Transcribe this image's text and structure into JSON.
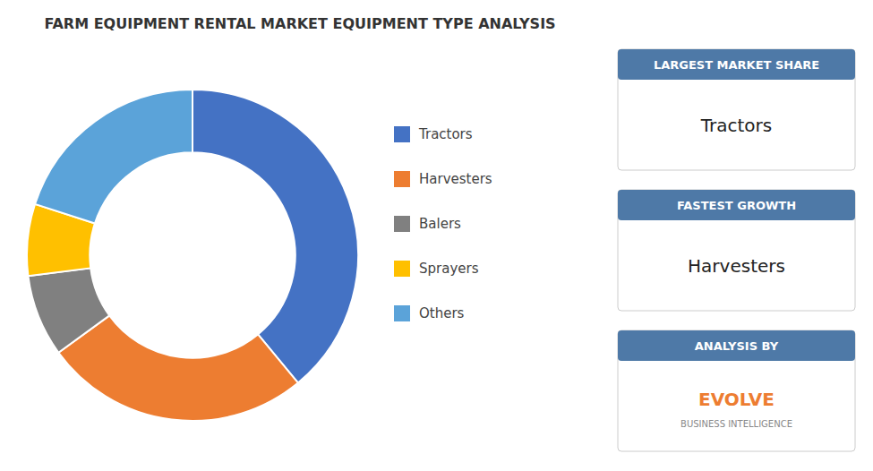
{
  "chart_data": {
    "type": "pie",
    "title": "FARM EQUIPMENT RENTAL MARKET EQUIPMENT TYPE ANALYSIS",
    "categories": [
      "Tractors",
      "Harvesters",
      "Balers",
      "Sprayers",
      "Others"
    ],
    "values": [
      39,
      26,
      8,
      7,
      20
    ],
    "colors": [
      "#4472c4",
      "#ed7d31",
      "#808080",
      "#ffc000",
      "#5ba3d9"
    ],
    "legend": "right",
    "annotations": [
      {
        "header": "LARGEST MARKET SHARE",
        "text": "Tractors"
      },
      {
        "header": "FASTEST GROWTH",
        "text": "Harvesters"
      },
      {
        "header": "ANALYSIS BY",
        "text": "EVOLVE",
        "subtext": "BUSINESS INTELLIGENCE"
      }
    ]
  }
}
